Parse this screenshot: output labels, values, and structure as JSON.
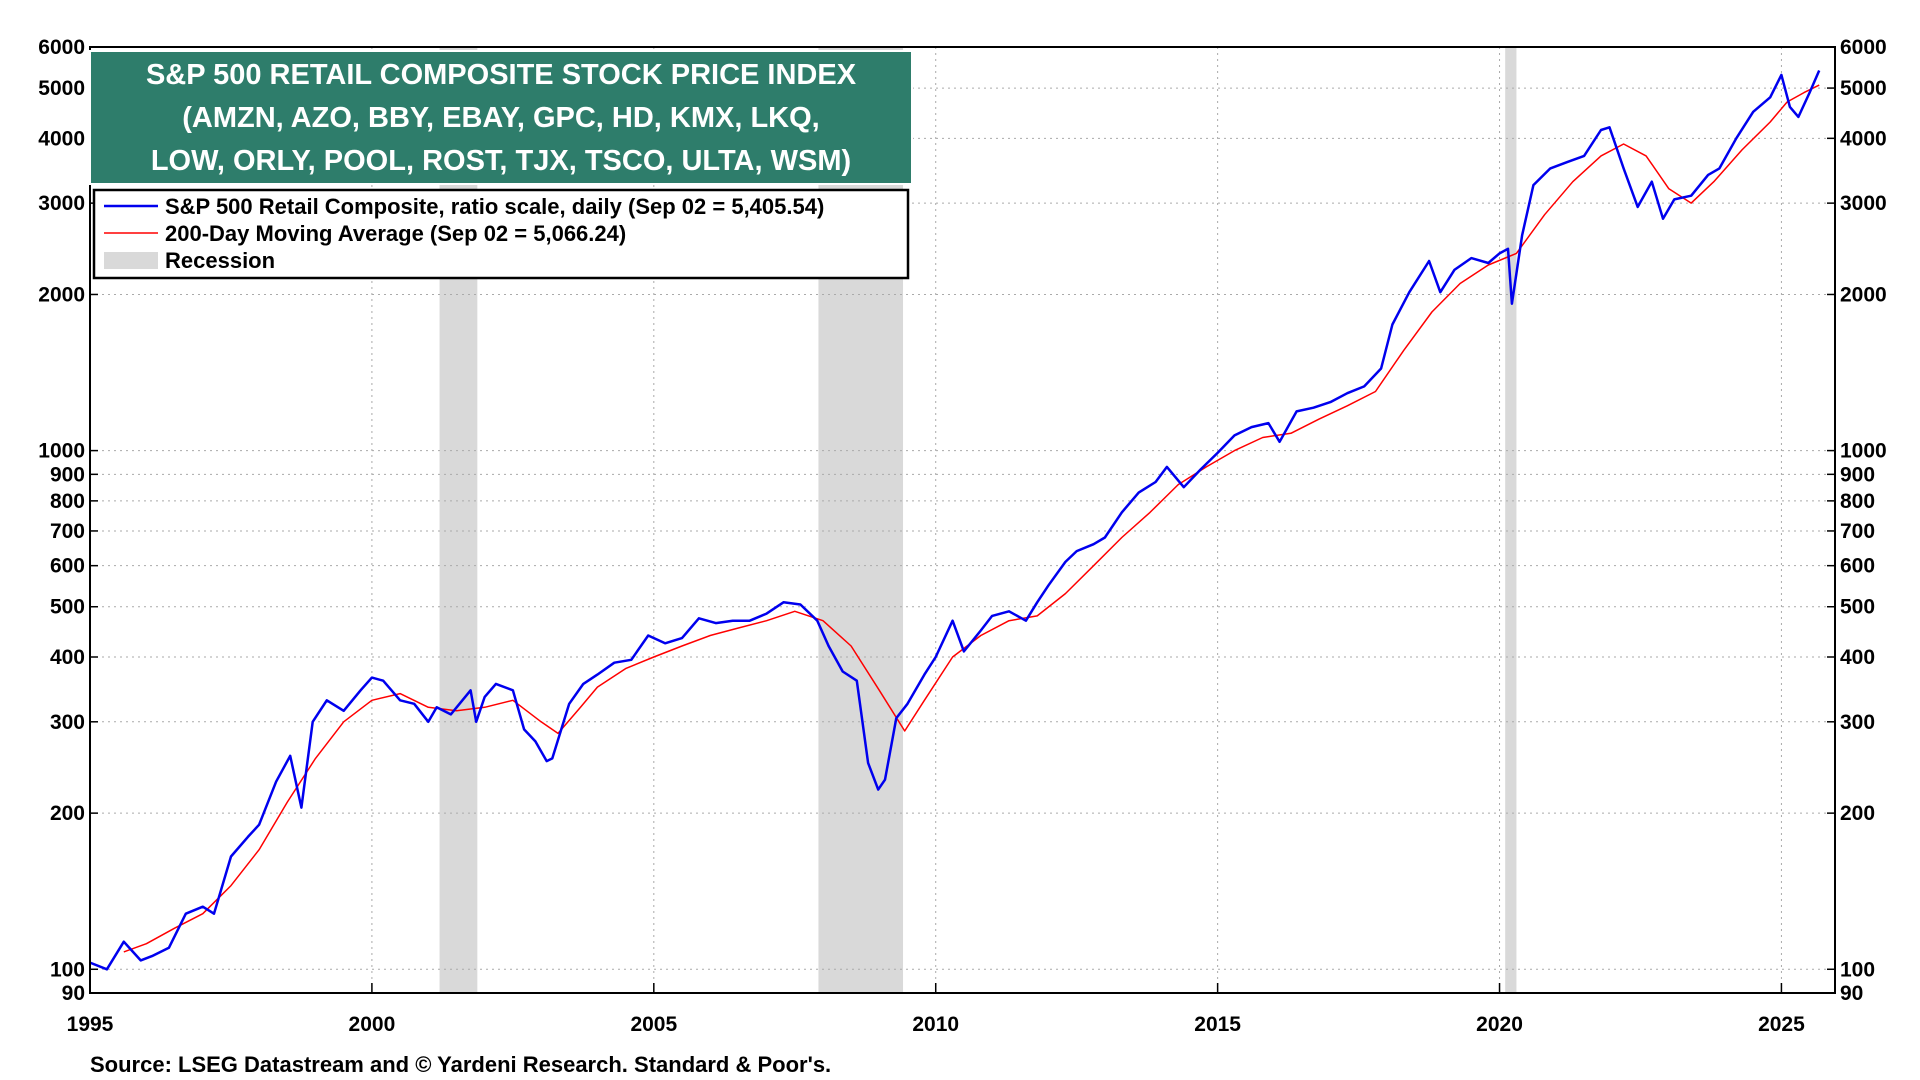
{
  "chart_data": {
    "type": "line",
    "title": "S&P 500 RETAIL COMPOSITE STOCK PRICE INDEX",
    "subtitle_lines": [
      "(AMZN, AZO, BBY, EBAY, GPC, HD, KMX, LKQ,",
      "LOW, ORLY, POOL, ROST, TJX, TSCO, ULTA, WSM)"
    ],
    "yscale": "log",
    "ylim": [
      90,
      6000
    ],
    "xlim": [
      1995.0,
      2025.95
    ],
    "x_ticks": [
      1995,
      2000,
      2005,
      2010,
      2015,
      2020,
      2025
    ],
    "y_ticks": [
      90,
      100,
      200,
      300,
      400,
      500,
      600,
      700,
      800,
      900,
      1000,
      2000,
      3000,
      4000,
      5000,
      6000
    ],
    "grid": true,
    "legend_position": "top-left",
    "legend": [
      {
        "label": "S&P 500 Retail Composite, ratio scale, daily (Sep 02 = 5,405.54)",
        "color": "#0000ee"
      },
      {
        "label": "200-Day Moving Average (Sep 02 = 5,066.24)",
        "color": "#ff0000"
      },
      {
        "label": "Recession",
        "color": "#d9d9d9"
      }
    ],
    "recessions": [
      [
        2001.2,
        2001.87
      ],
      [
        2007.92,
        2009.42
      ],
      [
        2020.1,
        2020.3
      ]
    ],
    "series": [
      {
        "name": "S&P 500 Retail Composite, ratio scale, daily (Sep 02 = 5,405.54)",
        "color": "#0000ee",
        "x": [
          1995.0,
          1995.3,
          1995.6,
          1995.9,
          1996.1,
          1996.4,
          1996.7,
          1997.0,
          1997.2,
          1997.5,
          1997.8,
          1998.0,
          1998.3,
          1998.55,
          1998.75,
          1998.95,
          1999.2,
          1999.5,
          1999.8,
          2000.0,
          2000.2,
          2000.5,
          2000.75,
          2001.0,
          2001.15,
          2001.4,
          2001.75,
          2001.85,
          2002.0,
          2002.2,
          2002.5,
          2002.7,
          2002.9,
          2003.1,
          2003.2,
          2003.5,
          2003.75,
          2004.0,
          2004.3,
          2004.6,
          2004.9,
          2005.2,
          2005.5,
          2005.8,
          2006.1,
          2006.4,
          2006.7,
          2007.0,
          2007.3,
          2007.6,
          2007.9,
          2008.1,
          2008.35,
          2008.6,
          2008.8,
          2008.98,
          2009.1,
          2009.3,
          2009.5,
          2009.8,
          2010.0,
          2010.3,
          2010.5,
          2010.8,
          2011.0,
          2011.3,
          2011.6,
          2011.8,
          2012.0,
          2012.3,
          2012.5,
          2012.8,
          2013.0,
          2013.3,
          2013.6,
          2013.9,
          2014.1,
          2014.4,
          2014.7,
          2015.0,
          2015.3,
          2015.6,
          2015.9,
          2016.1,
          2016.4,
          2016.7,
          2017.0,
          2017.3,
          2017.6,
          2017.9,
          2018.1,
          2018.4,
          2018.75,
          2018.95,
          2019.2,
          2019.5,
          2019.8,
          2020.0,
          2020.15,
          2020.22,
          2020.4,
          2020.6,
          2020.9,
          2021.2,
          2021.5,
          2021.8,
          2021.95,
          2022.2,
          2022.45,
          2022.7,
          2022.9,
          2023.1,
          2023.4,
          2023.7,
          2023.9,
          2024.2,
          2024.5,
          2024.8,
          2025.0,
          2025.15,
          2025.3,
          2025.5,
          2025.67
        ],
        "values": [
          103,
          100,
          113,
          104,
          106,
          110,
          128,
          132,
          128,
          165,
          180,
          190,
          230,
          258,
          205,
          300,
          330,
          315,
          345,
          365,
          360,
          330,
          325,
          300,
          320,
          310,
          345,
          300,
          335,
          355,
          345,
          290,
          275,
          252,
          255,
          325,
          355,
          370,
          390,
          395,
          440,
          425,
          435,
          475,
          465,
          470,
          470,
          485,
          510,
          505,
          470,
          420,
          375,
          360,
          250,
          222,
          232,
          305,
          325,
          370,
          400,
          470,
          410,
          450,
          480,
          490,
          470,
          510,
          550,
          610,
          640,
          660,
          680,
          760,
          830,
          870,
          930,
          850,
          920,
          990,
          1070,
          1110,
          1130,
          1040,
          1190,
          1210,
          1240,
          1290,
          1330,
          1440,
          1750,
          2020,
          2320,
          2020,
          2230,
          2350,
          2300,
          2400,
          2450,
          1920,
          2600,
          3250,
          3500,
          3600,
          3700,
          4150,
          4200,
          3500,
          2950,
          3300,
          2800,
          3050,
          3100,
          3400,
          3500,
          4000,
          4500,
          4800,
          5300,
          4600,
          4400,
          4900,
          5405.54
        ]
      },
      {
        "name": "200-Day Moving Average (Sep 02 = 5,066.24)",
        "color": "#ff0000",
        "x": [
          1995.6,
          1996.0,
          1996.5,
          1997.0,
          1997.5,
          1998.0,
          1998.5,
          1999.0,
          1999.5,
          2000.0,
          2000.5,
          2001.0,
          2001.5,
          2002.0,
          2002.5,
          2003.0,
          2003.3,
          2003.7,
          2004.0,
          2004.5,
          2005.0,
          2005.5,
          2006.0,
          2006.5,
          2007.0,
          2007.5,
          2008.0,
          2008.5,
          2009.0,
          2009.45,
          2009.8,
          2010.3,
          2010.8,
          2011.3,
          2011.8,
          2012.3,
          2012.8,
          2013.3,
          2013.8,
          2014.3,
          2014.8,
          2015.3,
          2015.8,
          2016.3,
          2016.8,
          2017.3,
          2017.8,
          2018.3,
          2018.8,
          2019.3,
          2019.8,
          2020.3,
          2020.8,
          2021.3,
          2021.8,
          2022.2,
          2022.6,
          2023.0,
          2023.4,
          2023.8,
          2024.3,
          2024.8,
          2025.1,
          2025.4,
          2025.67
        ],
        "values": [
          108,
          112,
          120,
          128,
          145,
          170,
          210,
          255,
          300,
          330,
          340,
          320,
          315,
          320,
          330,
          300,
          285,
          320,
          350,
          380,
          400,
          420,
          440,
          455,
          470,
          490,
          470,
          420,
          345,
          288,
          330,
          400,
          440,
          470,
          480,
          530,
          600,
          680,
          760,
          860,
          930,
          1000,
          1060,
          1080,
          1150,
          1220,
          1300,
          1560,
          1850,
          2100,
          2280,
          2400,
          2850,
          3300,
          3700,
          3900,
          3700,
          3200,
          3000,
          3300,
          3800,
          4300,
          4700,
          4900,
          5066.24
        ]
      }
    ]
  },
  "source_note": "Source: LSEG Datastream and © Yardeni Research. Standard & Poor's."
}
